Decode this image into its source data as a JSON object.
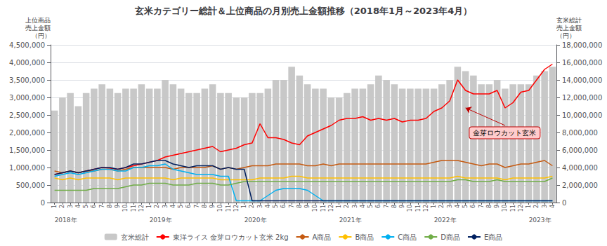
{
  "chart_data": {
    "type": "line",
    "title": "玄米カテゴリー総計＆上位商品の月別売上金額推移（2018年1月～2023年4月）",
    "ylabel": "上位商品\n売上金額\n（円）",
    "y2label": "玄米総計\n売上金額\n（円）",
    "categories": [
      "1",
      "2",
      "3",
      "4",
      "5",
      "6",
      "7",
      "8",
      "9",
      "10",
      "11",
      "12",
      "1",
      "2",
      "3",
      "4",
      "5",
      "6",
      "7",
      "8",
      "9",
      "10",
      "11",
      "12",
      "1",
      "2",
      "3",
      "4",
      "5",
      "6",
      "7",
      "8",
      "9",
      "10",
      "11",
      "12",
      "1",
      "2",
      "3",
      "4",
      "5",
      "6",
      "7",
      "8",
      "9",
      "10",
      "11",
      "12",
      "1",
      "2",
      "3",
      "4",
      "5",
      "6",
      "7",
      "8",
      "9",
      "10",
      "11",
      "12",
      "1",
      "2",
      "3",
      "4"
    ],
    "year_labels": [
      {
        "label": "2018年",
        "x": 0
      },
      {
        "label": "2019年",
        "x": 12
      },
      {
        "label": "2020年",
        "x": 24
      },
      {
        "label": "2021年",
        "x": 36
      },
      {
        "label": "2022年",
        "x": 48
      },
      {
        "label": "2023年",
        "x": 60
      }
    ],
    "series": [
      {
        "name": "玄米総計",
        "type": "bar",
        "axis": "y2",
        "color": "#c8c8c8",
        "values": [
          10500000,
          12000000,
          12500000,
          11000000,
          12500000,
          13000000,
          13500000,
          13000000,
          12500000,
          13000000,
          13000000,
          13500000,
          13000000,
          13000000,
          14000000,
          13500000,
          13000000,
          12500000,
          12500000,
          13000000,
          13500000,
          12500000,
          12500000,
          12000000,
          12000000,
          12500000,
          12500000,
          13000000,
          14000000,
          14000000,
          15500000,
          14500000,
          13500000,
          13000000,
          13000000,
          12000000,
          12000000,
          12500000,
          13000000,
          13000000,
          13500000,
          14500000,
          14000000,
          13500000,
          13000000,
          13000000,
          13000000,
          13000000,
          13000000,
          13500000,
          14000000,
          15500000,
          15000000,
          14500000,
          13500000,
          13500000,
          14000000,
          13000000,
          13500000,
          13500000,
          13500000,
          14500000,
          15000000,
          15500000
        ]
      },
      {
        "name": "東洋ライス 金芽ロウカット玄米 2kg",
        "type": "line",
        "color": "#ff0000",
        "values": [
          800000,
          850000,
          900000,
          850000,
          900000,
          950000,
          1000000,
          980000,
          950000,
          1000000,
          1050000,
          1100000,
          1150000,
          1200000,
          1300000,
          1350000,
          1400000,
          1450000,
          1500000,
          1550000,
          1600000,
          1450000,
          1500000,
          1550000,
          1650000,
          1700000,
          2250000,
          1850000,
          1850000,
          1800000,
          1700000,
          1650000,
          1900000,
          2000000,
          2100000,
          2200000,
          2350000,
          2400000,
          2400000,
          2450000,
          2350000,
          2400000,
          2350000,
          2400000,
          2300000,
          2350000,
          2350000,
          2400000,
          2600000,
          2700000,
          2900000,
          3500000,
          3200000,
          3100000,
          3100000,
          3100000,
          3200000,
          2700000,
          2850000,
          3150000,
          3200000,
          3500000,
          3800000,
          3950000
        ]
      },
      {
        "name": "A商品",
        "type": "line",
        "color": "#c55a11",
        "values": [
          900000,
          850000,
          900000,
          850000,
          900000,
          900000,
          950000,
          950000,
          900000,
          950000,
          1000000,
          1000000,
          1000000,
          1000000,
          1000000,
          950000,
          1000000,
          1000000,
          1000000,
          1000000,
          1050000,
          950000,
          1000000,
          950000,
          1000000,
          1050000,
          1050000,
          1050000,
          1100000,
          1100000,
          1100000,
          1100000,
          1050000,
          1050000,
          1100000,
          1050000,
          1100000,
          1100000,
          1100000,
          1100000,
          1100000,
          1100000,
          1100000,
          1100000,
          1100000,
          1100000,
          1100000,
          1100000,
          1150000,
          1200000,
          1200000,
          1200000,
          1150000,
          1100000,
          1050000,
          1100000,
          1100000,
          1000000,
          1050000,
          1100000,
          1100000,
          1150000,
          1200000,
          1050000
        ]
      },
      {
        "name": "B商品",
        "type": "line",
        "color": "#ffc000",
        "values": [
          700000,
          650000,
          700000,
          650000,
          700000,
          700000,
          700000,
          700000,
          650000,
          700000,
          700000,
          700000,
          700000,
          700000,
          700000,
          650000,
          700000,
          700000,
          700000,
          700000,
          700000,
          650000,
          650000,
          650000,
          650000,
          650000,
          700000,
          700000,
          700000,
          700000,
          750000,
          750000,
          700000,
          700000,
          700000,
          700000,
          700000,
          700000,
          700000,
          700000,
          700000,
          700000,
          700000,
          700000,
          700000,
          700000,
          700000,
          700000,
          700000,
          700000,
          700000,
          750000,
          700000,
          700000,
          700000,
          700000,
          700000,
          650000,
          700000,
          700000,
          700000,
          700000,
          700000,
          750000
        ]
      },
      {
        "name": "C商品",
        "type": "line",
        "color": "#00b0f0",
        "values": [
          750000,
          800000,
          850000,
          800000,
          850000,
          900000,
          950000,
          950000,
          900000,
          900000,
          1000000,
          1000000,
          1050000,
          1050000,
          1100000,
          950000,
          900000,
          850000,
          800000,
          800000,
          800000,
          750000,
          750000,
          50000,
          50000,
          50000,
          50000,
          200000,
          350000,
          400000,
          400000,
          400000,
          350000,
          200000,
          50000,
          50000,
          50000,
          50000,
          50000,
          50000,
          50000,
          50000,
          50000,
          50000,
          50000,
          50000,
          50000,
          50000,
          50000,
          50000,
          50000,
          50000,
          50000,
          50000,
          50000,
          50000,
          50000,
          50000,
          50000,
          50000,
          50000,
          50000,
          50000,
          50000
        ]
      },
      {
        "name": "D商品",
        "type": "line",
        "color": "#70ad47",
        "values": [
          350000,
          350000,
          350000,
          350000,
          350000,
          400000,
          400000,
          400000,
          400000,
          450000,
          500000,
          500000,
          550000,
          550000,
          550000,
          500000,
          500000,
          500000,
          550000,
          550000,
          550000,
          500000,
          500000,
          550000,
          600000,
          600000,
          600000,
          600000,
          600000,
          600000,
          600000,
          600000,
          600000,
          600000,
          600000,
          600000,
          600000,
          600000,
          600000,
          600000,
          600000,
          600000,
          600000,
          600000,
          600000,
          600000,
          600000,
          600000,
          600000,
          600000,
          600000,
          650000,
          650000,
          600000,
          600000,
          600000,
          650000,
          600000,
          600000,
          600000,
          600000,
          600000,
          600000,
          700000
        ]
      },
      {
        "name": "E商品",
        "type": "line",
        "color": "#002060",
        "values": [
          800000,
          850000,
          900000,
          850000,
          900000,
          950000,
          1000000,
          1000000,
          950000,
          1000000,
          1100000,
          1100000,
          1150000,
          1200000,
          1200000,
          1100000,
          1050000,
          1000000,
          1050000,
          1050000,
          1050000,
          950000,
          1000000,
          950000,
          950000,
          50000,
          50000,
          50000,
          50000,
          50000,
          50000,
          50000,
          50000,
          50000,
          50000,
          50000,
          50000,
          50000,
          50000,
          50000,
          50000,
          50000,
          50000,
          50000,
          50000,
          50000,
          50000,
          50000,
          50000,
          50000,
          50000,
          50000,
          50000,
          50000,
          50000,
          50000,
          50000,
          50000,
          50000,
          50000,
          50000,
          50000,
          50000,
          50000
        ]
      }
    ],
    "ylim": [
      0,
      4500000
    ],
    "yticks": [
      0,
      {
        "value": 500000,
        "label": "500,000"
      },
      {
        "value": 1000000,
        "label": "1,000,000"
      },
      {
        "value": 1500000,
        "label": "1,500,000"
      },
      {
        "value": 2000000,
        "label": "2,000,000"
      },
      {
        "value": 2500000,
        "label": "2,500,000"
      },
      {
        "value": 3000000,
        "label": "3,000,000"
      },
      {
        "value": 3500000,
        "label": "3,500,000"
      },
      {
        "value": 4000000,
        "label": "4,000,000"
      },
      {
        "value": 4500000,
        "label": "4,500,000"
      }
    ],
    "y2lim": [
      0,
      18000000
    ],
    "y2ticks": [
      0,
      {
        "value": 2000000,
        "label": "2,000,000"
      },
      {
        "value": 4000000,
        "label": "4,000,000"
      },
      {
        "value": 6000000,
        "label": "6,000,000"
      },
      {
        "value": 8000000,
        "label": "8,000,000"
      },
      {
        "value": 10000000,
        "label": "10,000,000"
      },
      {
        "value": 12000000,
        "label": "12,000,000"
      },
      {
        "value": 14000000,
        "label": "14,000,000"
      },
      {
        "value": 16000000,
        "label": "16,000,000"
      },
      {
        "value": 18000000,
        "label": "18,000,000"
      }
    ],
    "grid": true,
    "legend": "bottom",
    "annotations": [
      {
        "text": "金芽ロウカット玄米",
        "x": 52,
        "y": 2700000,
        "text_x": 57,
        "text_y": 2200000
      }
    ]
  }
}
